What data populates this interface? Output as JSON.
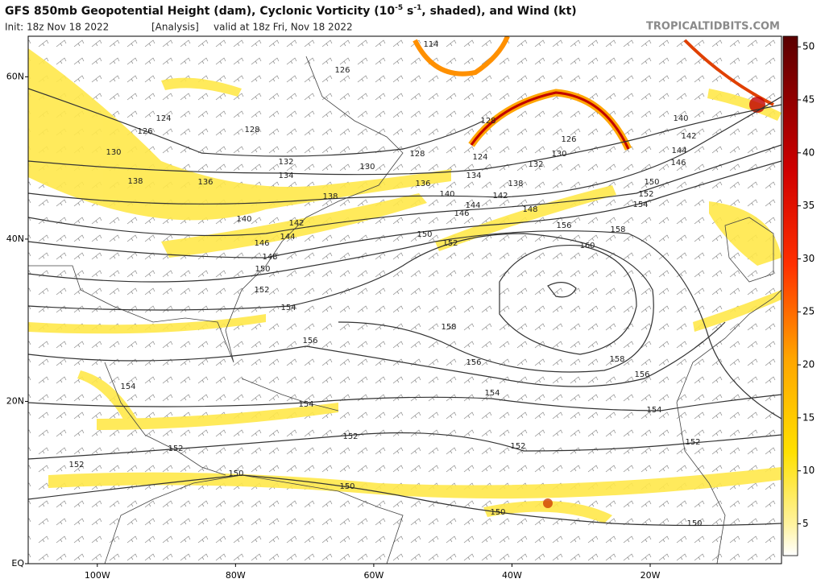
{
  "header": {
    "title_a": "GFS 850mb Geopotential Height (dam), Cyclonic Vorticity (10",
    "title_exp1": "-5",
    "title_b": " s",
    "title_exp2": "-1",
    "title_c": ", shaded), and Wind (kt)",
    "init": "Init: 18z Nov 18 2022",
    "analysis": "[Analysis]",
    "valid": "valid at 18z Fri, Nov 18 2022",
    "site": "TROPICALTIDBITS.COM"
  },
  "map": {
    "latlim": [
      0,
      65
    ],
    "lonlim": [
      -110,
      -1
    ],
    "latticks": [
      {
        "value": 60,
        "label": "60N"
      },
      {
        "value": 40,
        "label": "40N"
      },
      {
        "value": 20,
        "label": "20N"
      },
      {
        "value": 0,
        "label": "EQ"
      }
    ],
    "lonticks": [
      {
        "value": -100,
        "label": "100W"
      },
      {
        "value": -80,
        "label": "80W"
      },
      {
        "value": -60,
        "label": "60W"
      },
      {
        "value": -40,
        "label": "40W"
      },
      {
        "value": -20,
        "label": "20W"
      }
    ],
    "contour_labels": [
      126,
      124,
      126,
      128,
      130,
      132,
      134,
      130,
      128,
      138,
      136,
      138,
      136,
      134,
      140,
      142,
      144,
      146,
      138,
      132,
      130,
      126,
      128,
      124,
      148,
      140,
      142,
      144,
      146,
      148,
      150,
      152,
      154,
      150,
      152,
      156,
      160,
      158,
      150,
      152,
      154,
      146,
      144,
      142,
      140,
      158,
      156,
      156,
      154,
      158,
      156,
      154,
      154,
      154,
      152,
      152,
      152,
      152,
      152,
      150,
      150,
      150,
      150,
      114
    ]
  },
  "colorbar": {
    "lim": [
      2,
      51
    ],
    "ticks": [
      5,
      10,
      15,
      20,
      25,
      30,
      35,
      40,
      45,
      50
    ]
  }
}
